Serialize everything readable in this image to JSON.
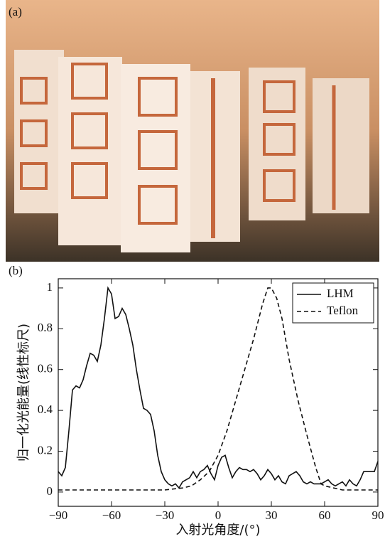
{
  "photo": {
    "label": "(a)"
  },
  "chart_data": {
    "type": "line",
    "panel_label": "(b)",
    "y_label": "归一化光能量(线性标尺)",
    "x_label": "入射光角度/(°)",
    "xlim": [
      -90,
      90
    ],
    "ylim": [
      -0.07,
      1.045
    ],
    "xticks": [
      {
        "value": -90,
        "label": "−90"
      },
      {
        "value": -60,
        "label": "−60"
      },
      {
        "value": -30,
        "label": "−30"
      },
      0,
      30,
      60,
      90
    ],
    "yticks": [
      0,
      0.2,
      0.4,
      0.6,
      0.8,
      1
    ],
    "legend": "upper right",
    "series": [
      {
        "name": "LHM",
        "color": "#111111",
        "dash": "solid",
        "x": [
          -90,
          -88,
          -86,
          -84,
          -82,
          -80,
          -78,
          -76,
          -74,
          -72,
          -70,
          -68,
          -66,
          -64,
          -62,
          -60,
          -58,
          -56,
          -54,
          -52,
          -50,
          -48,
          -46,
          -44,
          -42,
          -40,
          -38,
          -36,
          -34,
          -32,
          -30,
          -28,
          -26,
          -24,
          -22,
          -20,
          -18,
          -16,
          -14,
          -12,
          -10,
          -8,
          -6,
          -4,
          -2,
          0,
          2,
          4,
          6,
          8,
          10,
          12,
          14,
          16,
          18,
          20,
          22,
          24,
          26,
          28,
          30,
          32,
          34,
          36,
          38,
          40,
          42,
          44,
          46,
          48,
          50,
          52,
          54,
          56,
          58,
          60,
          62,
          64,
          66,
          68,
          70,
          72,
          74,
          76,
          78,
          80,
          82,
          84,
          86,
          88,
          90
        ],
        "values": [
          0.1,
          0.08,
          0.12,
          0.3,
          0.5,
          0.52,
          0.51,
          0.55,
          0.62,
          0.68,
          0.67,
          0.64,
          0.72,
          0.85,
          1.0,
          0.97,
          0.85,
          0.86,
          0.9,
          0.87,
          0.8,
          0.72,
          0.6,
          0.5,
          0.41,
          0.4,
          0.38,
          0.3,
          0.18,
          0.1,
          0.06,
          0.04,
          0.03,
          0.04,
          0.02,
          0.05,
          0.06,
          0.07,
          0.1,
          0.07,
          0.1,
          0.11,
          0.13,
          0.09,
          0.06,
          0.13,
          0.17,
          0.18,
          0.12,
          0.07,
          0.1,
          0.12,
          0.11,
          0.11,
          0.1,
          0.11,
          0.09,
          0.06,
          0.08,
          0.11,
          0.09,
          0.06,
          0.08,
          0.05,
          0.04,
          0.08,
          0.09,
          0.1,
          0.08,
          0.05,
          0.04,
          0.05,
          0.04,
          0.04,
          0.04,
          0.05,
          0.06,
          0.04,
          0.03,
          0.04,
          0.05,
          0.03,
          0.06,
          0.04,
          0.03,
          0.06,
          0.1,
          0.1,
          0.1,
          0.1,
          0.15
        ]
      },
      {
        "name": "Teflon",
        "color": "#111111",
        "dash": "dashed",
        "x": [
          -90,
          -70,
          -50,
          -30,
          -20,
          -15,
          -10,
          -5,
          0,
          5,
          10,
          15,
          20,
          25,
          28,
          30,
          33,
          36,
          40,
          45,
          50,
          55,
          58,
          60,
          70,
          90
        ],
        "values": [
          0.01,
          0.01,
          0.01,
          0.01,
          0.02,
          0.03,
          0.06,
          0.1,
          0.18,
          0.3,
          0.45,
          0.6,
          0.75,
          0.92,
          1.0,
          1.0,
          0.95,
          0.85,
          0.65,
          0.45,
          0.28,
          0.12,
          0.04,
          0.03,
          0.01,
          0.01
        ]
      }
    ]
  }
}
